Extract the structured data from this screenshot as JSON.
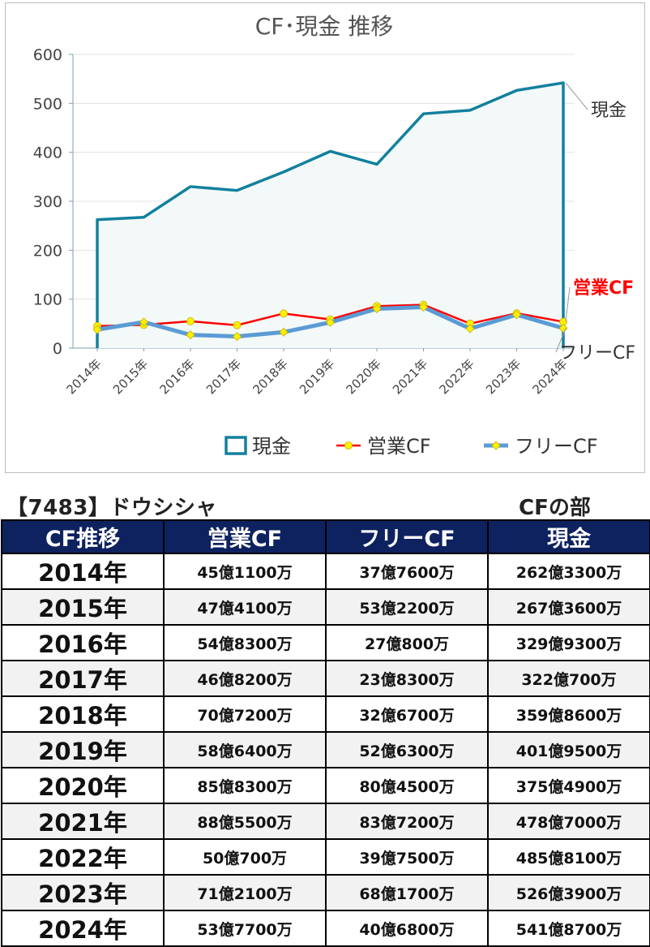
{
  "chart_data": {
    "type": "line",
    "title": "CF･現金 推移",
    "categories": [
      "2014年",
      "2015年",
      "2016年",
      "2017年",
      "2018年",
      "2019年",
      "2020年",
      "2021年",
      "2022年",
      "2023年",
      "2024年"
    ],
    "ylim": [
      0,
      600
    ],
    "yticks": [
      0,
      100,
      200,
      300,
      400,
      500,
      600
    ],
    "grid": true,
    "legend_position": "bottom",
    "series": [
      {
        "name": "現金",
        "style": "area",
        "color": "#12809e",
        "values": [
          262.33,
          267.36,
          329.93,
          322.07,
          359.86,
          401.95,
          375.49,
          478.7,
          485.81,
          526.39,
          541.87
        ]
      },
      {
        "name": "営業CF",
        "style": "line-marker",
        "color": "#ff0000",
        "marker_color": "#ffee00",
        "values": [
          45.11,
          47.41,
          54.83,
          46.82,
          70.72,
          58.64,
          85.83,
          88.55,
          50.07,
          71.21,
          53.77
        ]
      },
      {
        "name": "フリーCF",
        "style": "line-marker",
        "color": "#5b9bd5",
        "marker_color": "#ffee00",
        "values": [
          37.76,
          53.22,
          27.08,
          23.83,
          32.67,
          52.63,
          80.45,
          83.72,
          39.75,
          68.17,
          40.68
        ]
      }
    ],
    "end_labels": [
      "現金",
      "営業CF",
      "フリーCF"
    ]
  },
  "company": "【7483】ドウシシャ",
  "section_label": "CFの部",
  "table": {
    "headers": [
      "CF推移",
      "営業CF",
      "フリーCF",
      "現金"
    ],
    "rows": [
      [
        "2014年",
        "45億1100万",
        "37億7600万",
        "262億3300万"
      ],
      [
        "2015年",
        "47億4100万",
        "53億2200万",
        "267億3600万"
      ],
      [
        "2016年",
        "54億8300万",
        "27億800万",
        "329億9300万"
      ],
      [
        "2017年",
        "46億8200万",
        "23億8300万",
        "322億700万"
      ],
      [
        "2018年",
        "70億7200万",
        "32億6700万",
        "359億8600万"
      ],
      [
        "2019年",
        "58億6400万",
        "52億6300万",
        "401億9500万"
      ],
      [
        "2020年",
        "85億8300万",
        "80億4500万",
        "375億4900万"
      ],
      [
        "2021年",
        "88億5500万",
        "83億7200万",
        "478億7000万"
      ],
      [
        "2022年",
        "50億700万",
        "39億7500万",
        "485億8100万"
      ],
      [
        "2023年",
        "71億2100万",
        "68億1700万",
        "526億3900万"
      ],
      [
        "2024年",
        "53億7700万",
        "40億6800万",
        "541億8700万"
      ]
    ]
  }
}
